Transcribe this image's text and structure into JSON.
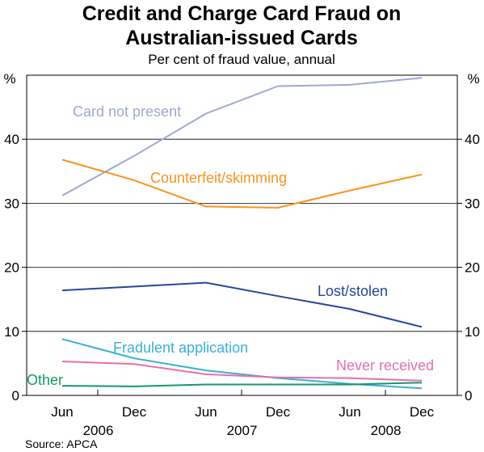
{
  "chart_data": {
    "type": "line",
    "title": "Credit and Charge Card Fraud on Australian-issued Cards",
    "title_lines": [
      "Credit and Charge Card Fraud on",
      "Australian-issued Cards"
    ],
    "subtitle": "Per cent of fraud value, annual",
    "ylabel_left": "%",
    "ylabel_right": "%",
    "ylim": [
      0,
      50
    ],
    "yticks": [
      0,
      10,
      20,
      30,
      40
    ],
    "x_tick_labels": [
      "Jun",
      "Dec",
      "Jun",
      "Dec",
      "Jun",
      "Dec"
    ],
    "x_year_labels": [
      "2006",
      "2007",
      "2008"
    ],
    "x": [
      "Jun 2006",
      "Dec 2006",
      "Jun 2007",
      "Dec 2007",
      "Jun 2008",
      "Dec 2008"
    ],
    "grid": true,
    "series": [
      {
        "name": "Card not present",
        "color": "#9fa8d2",
        "values": [
          31.2,
          37.4,
          44.0,
          48.3,
          48.5,
          49.6
        ]
      },
      {
        "name": "Counterfeit/skimming",
        "color": "#f7941d",
        "values": [
          36.8,
          33.6,
          29.5,
          29.3,
          32.0,
          34.5
        ]
      },
      {
        "name": "Lost/stolen",
        "color": "#26479b",
        "values": [
          16.4,
          17.0,
          17.6,
          15.5,
          13.5,
          10.7
        ]
      },
      {
        "name": "Fradulent application",
        "color": "#3aaedc",
        "values": [
          8.8,
          5.8,
          3.9,
          2.7,
          1.8,
          1.1
        ]
      },
      {
        "name": "Never received",
        "color": "#e86fa8",
        "values": [
          5.3,
          4.9,
          3.3,
          2.8,
          2.7,
          2.3
        ]
      },
      {
        "name": "Other",
        "color": "#159a63",
        "values": [
          1.5,
          1.4,
          1.7,
          1.7,
          1.7,
          2.0
        ]
      }
    ]
  },
  "source": "Source: APCA"
}
